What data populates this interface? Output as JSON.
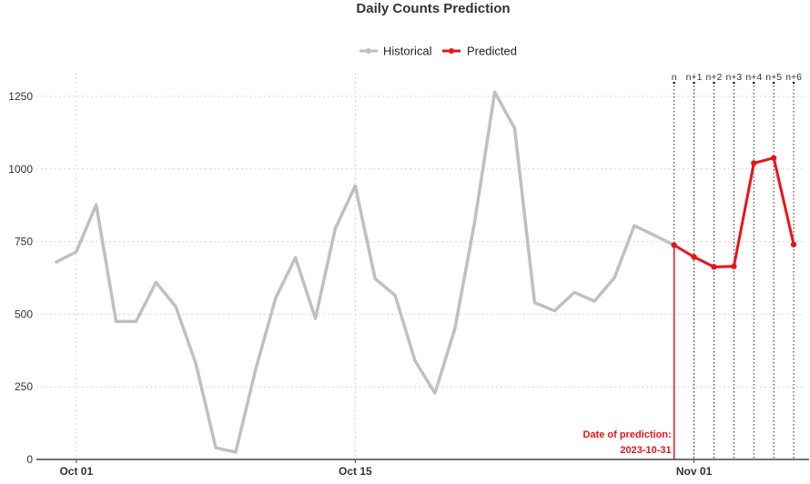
{
  "chart_data": {
    "type": "line",
    "title": "Daily Counts Prediction",
    "xlabel": "",
    "ylabel": "",
    "ylim": [
      0,
      1300
    ],
    "yticks": [
      0,
      250,
      500,
      750,
      1000,
      1250
    ],
    "ytick_labels": [
      "0",
      "250",
      "500",
      "750",
      "1000",
      "1250"
    ],
    "xticks": [
      "2023-10-01",
      "2023-10-15",
      "2023-11-01"
    ],
    "xtick_labels": [
      "Oct 01",
      "Oct 15",
      "Nov 01"
    ],
    "grid": true,
    "legend_position": "top",
    "series": [
      {
        "name": "Historical",
        "color": "#c0c0c0",
        "x": [
          "2023-09-30",
          "2023-10-01",
          "2023-10-02",
          "2023-10-03",
          "2023-10-04",
          "2023-10-05",
          "2023-10-06",
          "2023-10-07",
          "2023-10-08",
          "2023-10-09",
          "2023-10-10",
          "2023-10-11",
          "2023-10-12",
          "2023-10-13",
          "2023-10-14",
          "2023-10-15",
          "2023-10-16",
          "2023-10-17",
          "2023-10-18",
          "2023-10-19",
          "2023-10-20",
          "2023-10-21",
          "2023-10-22",
          "2023-10-23",
          "2023-10-24",
          "2023-10-25",
          "2023-10-26",
          "2023-10-27",
          "2023-10-28",
          "2023-10-29",
          "2023-10-30",
          "2023-10-31"
        ],
        "y": [
          680,
          715,
          877,
          475,
          475,
          610,
          525,
          330,
          40,
          25,
          310,
          555,
          695,
          485,
          795,
          942,
          622,
          565,
          340,
          228,
          450,
          820,
          1265,
          1140,
          540,
          512,
          575,
          545,
          625,
          805,
          772,
          738
        ]
      },
      {
        "name": "Predicted",
        "color": "#e8141b",
        "x": [
          "2023-10-31",
          "2023-11-01",
          "2023-11-02",
          "2023-11-03",
          "2023-11-04",
          "2023-11-05",
          "2023-11-06"
        ],
        "y": [
          738,
          697,
          663,
          665,
          1020,
          1038,
          740
        ]
      }
    ],
    "horizon_labels": [
      "n",
      "n+1",
      "n+2",
      "n+3",
      "n+4",
      "n+5",
      "n+6"
    ],
    "annotation": {
      "x": "2023-10-31",
      "line1": "Date of prediction:",
      "line2": "2023-10-31"
    }
  }
}
